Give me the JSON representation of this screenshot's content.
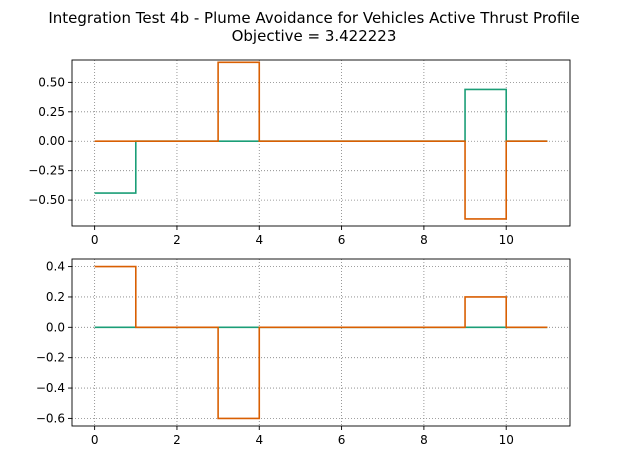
{
  "figure": {
    "title_line1": "Integration Test 4b - Plume Avoidance for Vehicles Active Thrust Profile",
    "title_line2": "Objective = 3.422223"
  },
  "colors": {
    "series_green": "#1b9e77",
    "series_orange": "#d95f02",
    "grid": "#808080"
  },
  "chart_data": [
    {
      "type": "line",
      "step": "post",
      "grid": true,
      "xlim": [
        -0.55,
        11.55
      ],
      "ylim": [
        -0.72,
        0.69
      ],
      "xticks": [
        0,
        2,
        4,
        6,
        8,
        10
      ],
      "xtick_labels": [
        "0",
        "2",
        "4",
        "6",
        "8",
        "10"
      ],
      "yticks": [
        0.5,
        0.25,
        0.0,
        -0.25,
        -0.5
      ],
      "ytick_labels": [
        "0.50",
        "0.25",
        "0.00",
        "−0.25",
        "−0.50"
      ],
      "x": [
        0,
        1,
        2,
        3,
        4,
        5,
        6,
        7,
        8,
        9,
        10,
        11
      ],
      "series": [
        {
          "values": [
            -0.44,
            0,
            0,
            0,
            0,
            0,
            0,
            0,
            0,
            0.44,
            0,
            0
          ],
          "color": "#1b9e77"
        },
        {
          "values": [
            0,
            0,
            0,
            0.67,
            0,
            0,
            0,
            0,
            0,
            -0.66,
            0,
            0
          ],
          "color": "#d95f02"
        }
      ]
    },
    {
      "type": "line",
      "step": "post",
      "grid": true,
      "xlim": [
        -0.55,
        11.55
      ],
      "ylim": [
        -0.65,
        0.45
      ],
      "xticks": [
        0,
        2,
        4,
        6,
        8,
        10
      ],
      "xtick_labels": [
        "0",
        "2",
        "4",
        "6",
        "8",
        "10"
      ],
      "yticks": [
        0.4,
        0.2,
        0.0,
        -0.2,
        -0.4,
        -0.6
      ],
      "ytick_labels": [
        "0.4",
        "0.2",
        "0.0",
        "−0.2",
        "−0.4",
        "−0.6"
      ],
      "x": [
        0,
        1,
        2,
        3,
        4,
        5,
        6,
        7,
        8,
        9,
        10,
        11
      ],
      "series": [
        {
          "values": [
            0,
            0,
            0,
            0,
            0,
            0,
            0,
            0,
            0,
            0,
            0,
            0
          ],
          "color": "#1b9e77"
        },
        {
          "values": [
            0.4,
            0,
            0,
            -0.6,
            0,
            0,
            0,
            0,
            0,
            0.2,
            0,
            0
          ],
          "color": "#d95f02"
        }
      ]
    }
  ]
}
